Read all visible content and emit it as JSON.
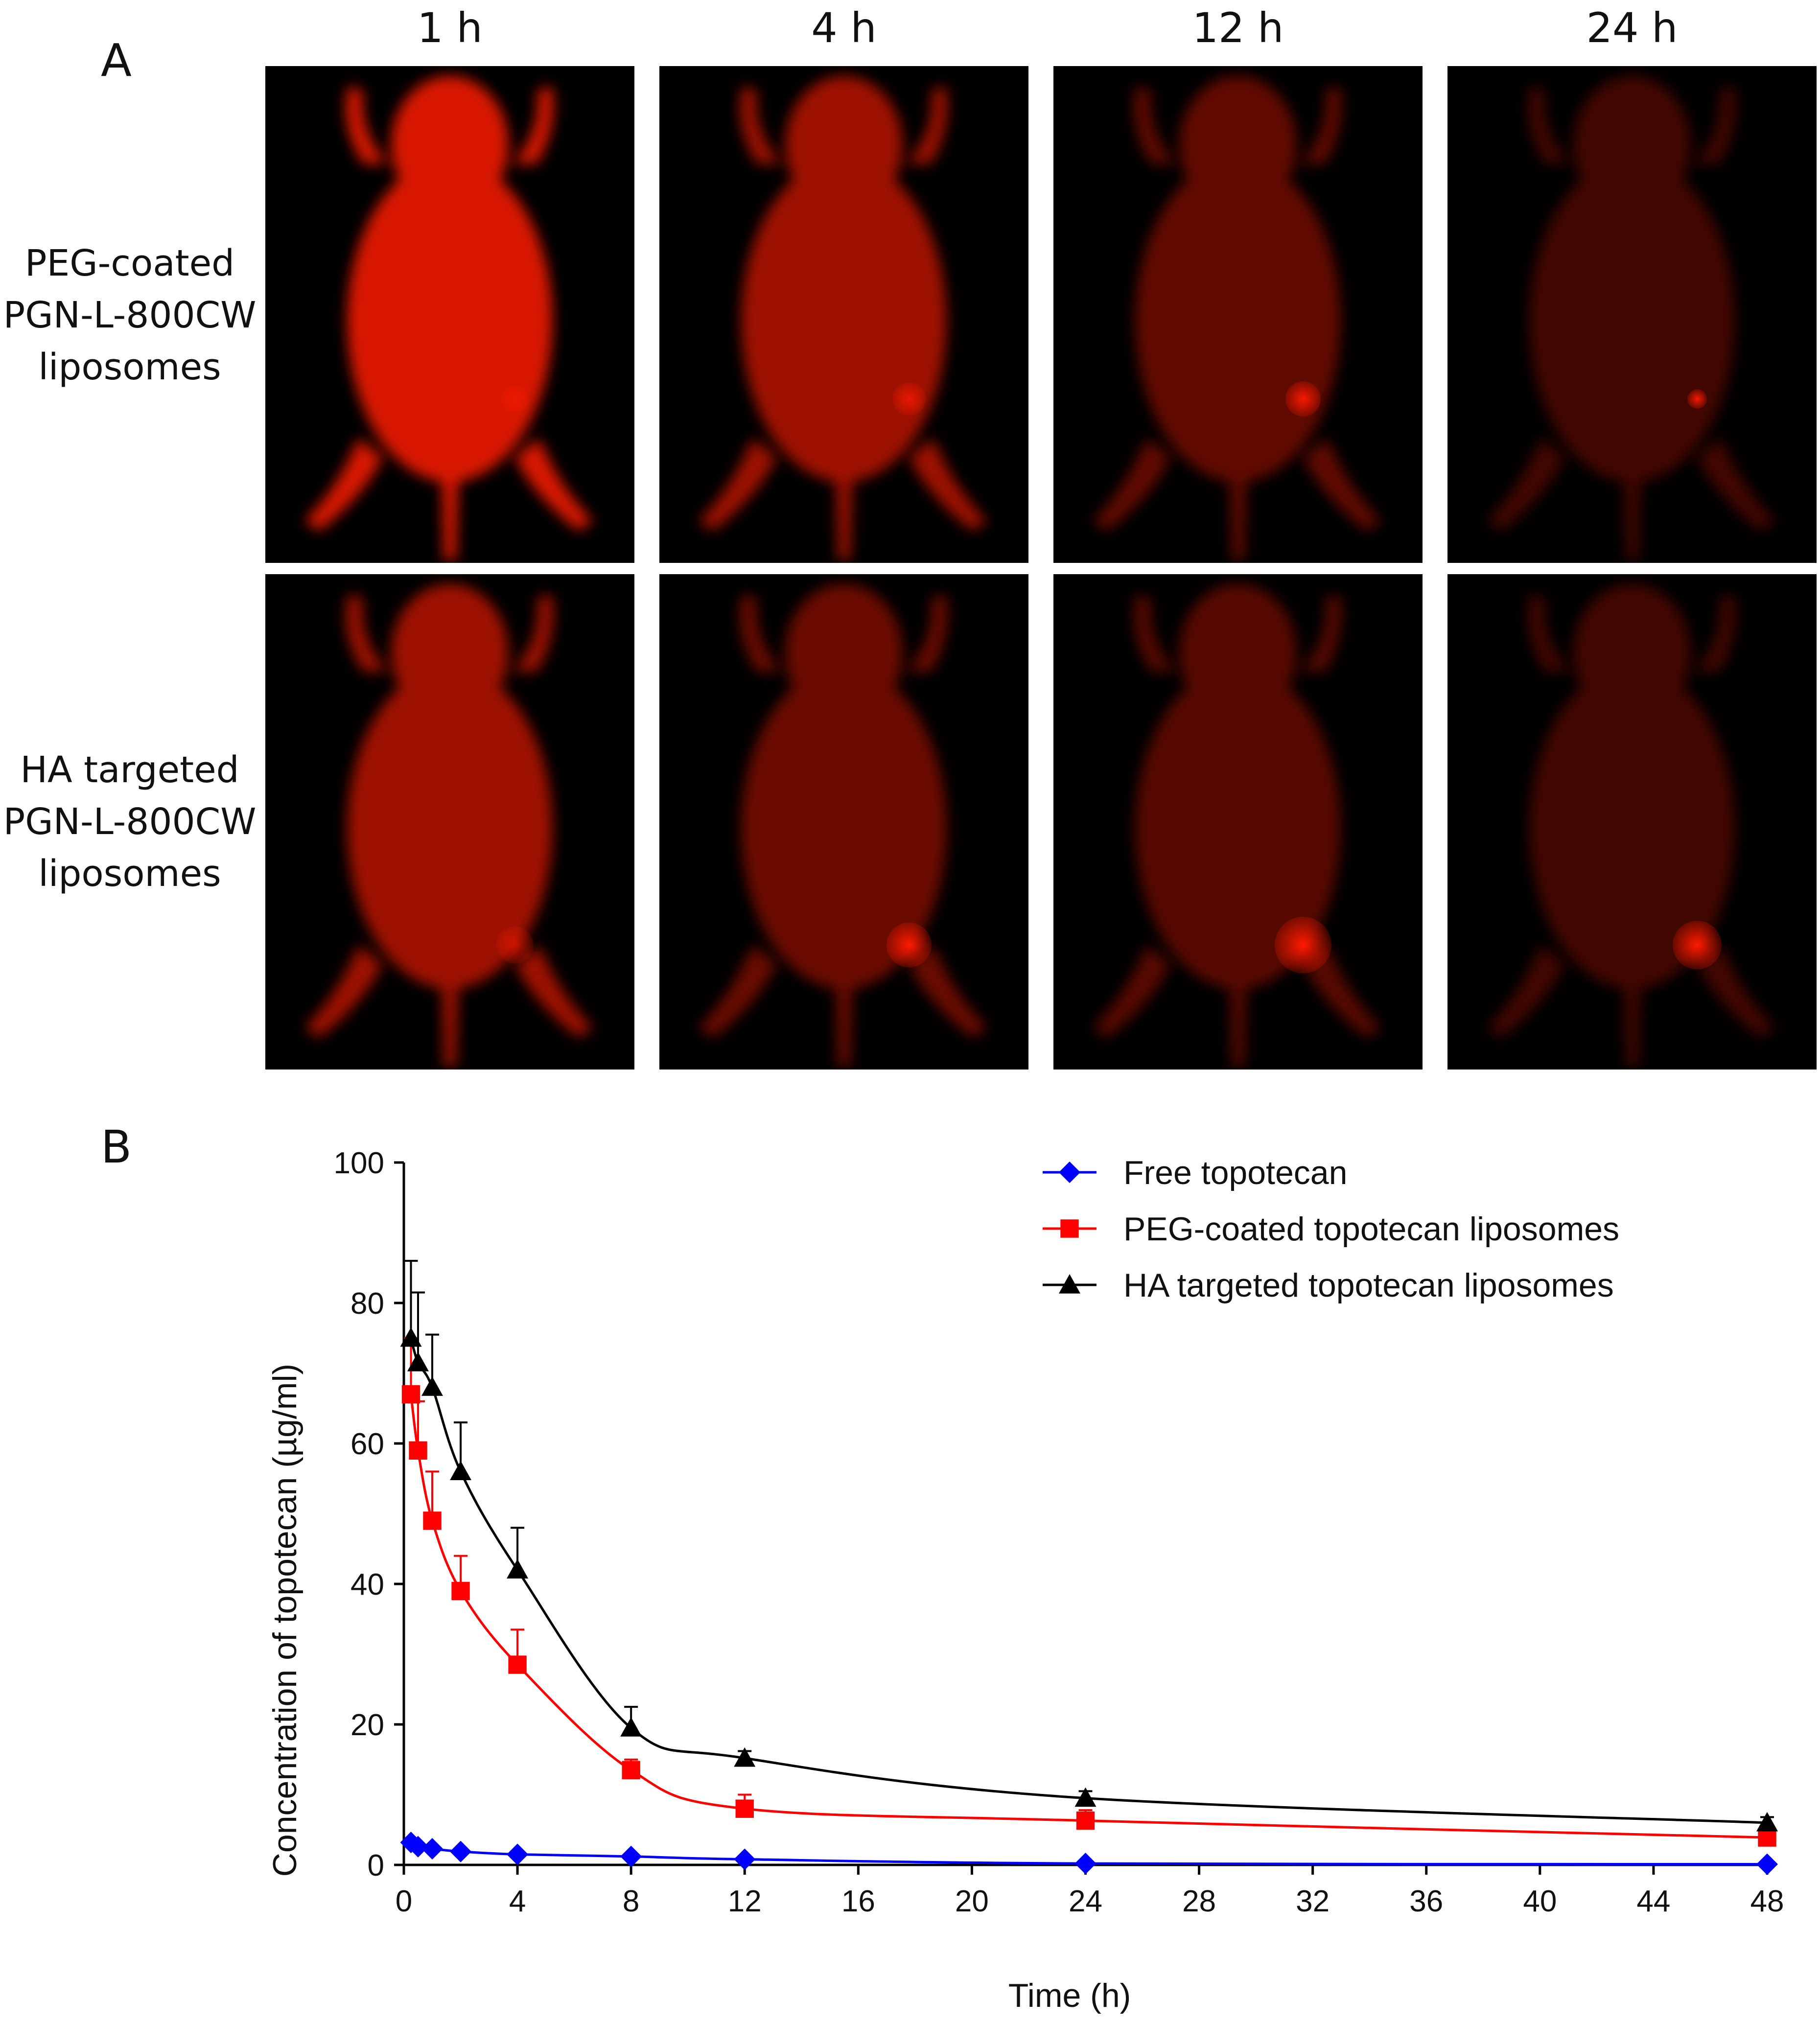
{
  "panel_a": {
    "letter": "A",
    "columns": [
      "1 h",
      "4 h",
      "12 h",
      "24 h"
    ],
    "rows": [
      {
        "label_lines": [
          "PEG-coated",
          "PGN-L-800CW",
          "liposomes"
        ]
      },
      {
        "label_lines": [
          "HA targeted",
          "PGN-L-800CW",
          "liposomes"
        ]
      }
    ],
    "image_color": "#ff1a00"
  },
  "panel_b": {
    "letter": "B"
  },
  "chart_data": {
    "type": "line",
    "title": "",
    "xlabel": "Time (h)",
    "ylabel": "Concentration of topotecan (µg/ml)",
    "xlim": [
      0,
      48
    ],
    "ylim": [
      0,
      100
    ],
    "xticks": [
      0,
      4,
      8,
      12,
      16,
      20,
      24,
      28,
      32,
      36,
      40,
      44,
      48
    ],
    "yticks": [
      0,
      20,
      40,
      60,
      80,
      100
    ],
    "grid": false,
    "legend_position": "top-right",
    "series": [
      {
        "name": "Free topotecan",
        "color": "#0000ff",
        "marker": "diamond",
        "x": [
          0.25,
          0.5,
          1,
          2,
          4,
          8,
          12,
          24,
          48
        ],
        "y": [
          3.2,
          2.6,
          2.3,
          1.9,
          1.5,
          1.2,
          0.8,
          0.2,
          0.1
        ],
        "err": [
          0.3,
          0.3,
          0.3,
          0.2,
          0.2,
          0.2,
          0.1,
          0.1,
          0.1
        ]
      },
      {
        "name": "PEG-coated topotecan liposomes",
        "color": "#ff0000",
        "marker": "square",
        "x": [
          0.25,
          0.5,
          1,
          2,
          4,
          8,
          12,
          24,
          48
        ],
        "y": [
          67,
          59,
          49,
          39,
          28.5,
          13.5,
          8,
          6.3,
          3.9
        ],
        "err": [
          8,
          7,
          7,
          5,
          5,
          1.5,
          2,
          1.5,
          0.5
        ]
      },
      {
        "name": "HA targeted topotecan liposomes",
        "color": "#000000",
        "marker": "triangle",
        "x": [
          0.25,
          0.5,
          1,
          2,
          4,
          8,
          12,
          24,
          48
        ],
        "y": [
          75,
          71.5,
          68,
          56,
          42,
          19.5,
          15.2,
          9.5,
          6
        ],
        "err": [
          11,
          10,
          7.5,
          7,
          6,
          3,
          1,
          1,
          0.8
        ]
      }
    ]
  }
}
